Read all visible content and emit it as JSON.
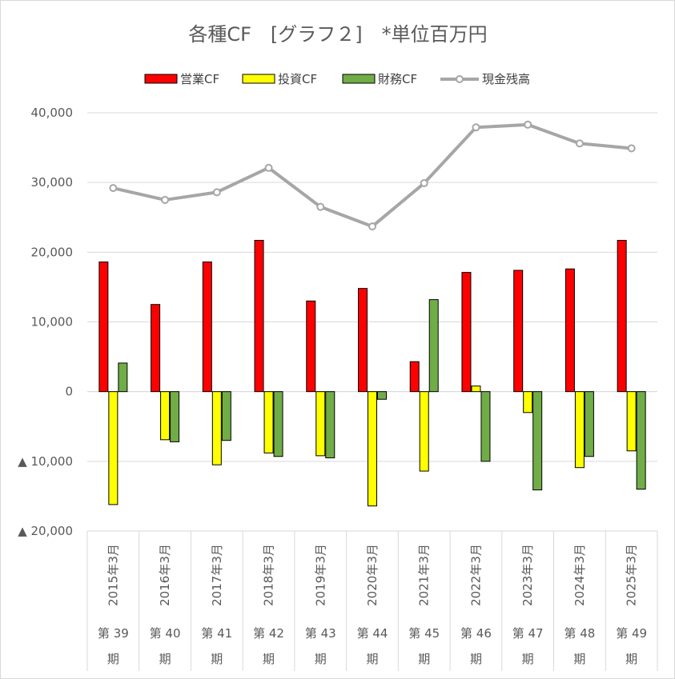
{
  "chart_data": {
    "type": "bar",
    "title": "各種CF　[グラフ２]　*単位百万円",
    "categories": [
      "2015年3月",
      "2016年3月",
      "2017年3月",
      "2018年3月",
      "2019年3月",
      "2020年3月",
      "2021年3月",
      "2022年3月",
      "2023年3月",
      "2024年3月",
      "2025年3月"
    ],
    "periods": [
      "第 39",
      "第 40",
      "第 41",
      "第 42",
      "第 43",
      "第 44",
      "第 45",
      "第 46",
      "第 47",
      "第 48",
      "第 49"
    ],
    "period_suffix": "期",
    "ylim": [
      -20000,
      40000
    ],
    "yticks": [
      40000,
      30000,
      20000,
      10000,
      0,
      -10000,
      -20000
    ],
    "ytick_labels": [
      "40,000",
      "30,000",
      "20,000",
      "10,000",
      "0",
      "▲ 10,000",
      "▲ 20,000"
    ],
    "grid": true,
    "legend_position": "top",
    "series": [
      {
        "name": "営業CF",
        "kind": "bar",
        "color": "#ff0000",
        "values": [
          18600,
          12500,
          18600,
          21700,
          13000,
          14800,
          4300,
          17100,
          17400,
          17600,
          21700
        ]
      },
      {
        "name": "投資CF",
        "kind": "bar",
        "color": "#ffff00",
        "values": [
          -16200,
          -6900,
          -10500,
          -8800,
          -9200,
          -16400,
          -11400,
          800,
          -3000,
          -10900,
          -8500
        ]
      },
      {
        "name": "財務CF",
        "kind": "bar",
        "color": "#70ad47",
        "values": [
          4100,
          -7200,
          -7000,
          -9300,
          -9500,
          -1100,
          13200,
          -10000,
          -14100,
          -9300,
          -14000
        ]
      },
      {
        "name": "現金残高",
        "kind": "line",
        "color": "#a6a6a6",
        "values": [
          29200,
          27500,
          28600,
          32100,
          26500,
          23700,
          29900,
          37900,
          38300,
          35600,
          34900
        ]
      }
    ]
  }
}
